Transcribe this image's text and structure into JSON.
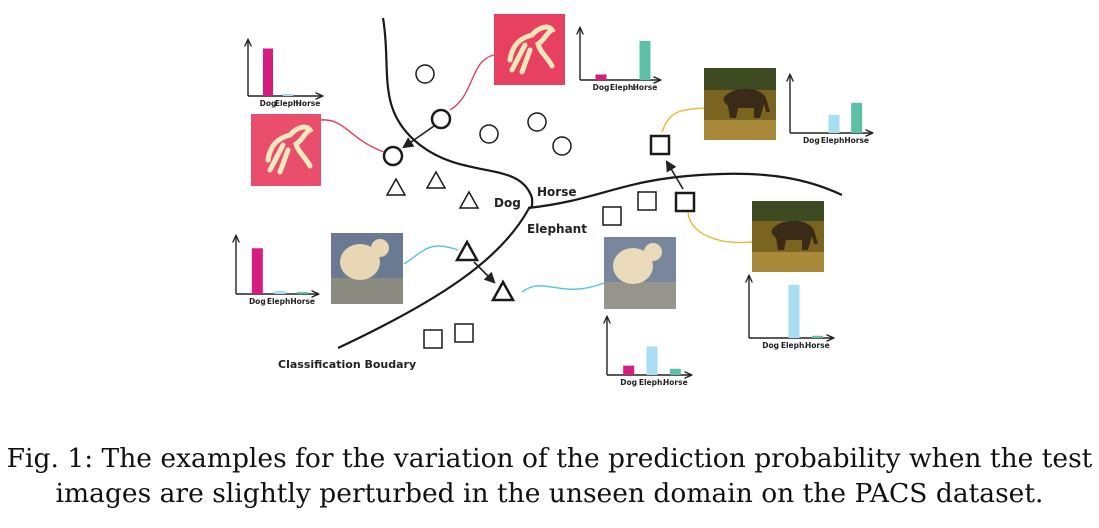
{
  "figure": {
    "region_labels": {
      "dog": "Dog",
      "horse": "Horse",
      "elephant": "Elephant",
      "boundary": "Classification Boudary"
    },
    "colors": {
      "dog": "#d81b7f",
      "eleph": "#a8def0",
      "horse": "#5bc0a6",
      "horse_link": "#e0405a",
      "dog_link": "#4fc3e6",
      "eleph_link": "#e8b830",
      "horse_img_bg": "#e84060",
      "horse_img_fg": "#f3e7b8",
      "elephant_img_bg": "#7a6420",
      "elephant_img_fg": "#3a2a18",
      "dog_img_bg": "#6a7a92",
      "dog_img_fg": "#e8d7b4"
    },
    "bar_charts": [
      {
        "id": "chart-top-left",
        "categories": [
          "Dog",
          "Eleph.",
          "Horse"
        ],
        "values": [
          0.95,
          0.02,
          0.0
        ]
      },
      {
        "id": "chart-top-mid",
        "categories": [
          "Dog",
          "Eleph.",
          "Horse"
        ],
        "values": [
          0.12,
          0.0,
          0.85
        ]
      },
      {
        "id": "chart-top-right",
        "categories": [
          "Dog",
          "Eleph.",
          "Horse"
        ],
        "values": [
          0.0,
          0.35,
          0.58
        ]
      },
      {
        "id": "chart-mid-left",
        "categories": [
          "Dog",
          "Eleph.",
          "Horse"
        ],
        "values": [
          0.88,
          0.06,
          0.04
        ]
      },
      {
        "id": "chart-bottom-mid",
        "categories": [
          "Dog",
          "Eleph.",
          "Horse"
        ],
        "values": [
          0.18,
          0.55,
          0.12
        ]
      },
      {
        "id": "chart-bottom-right",
        "categories": [
          "Dog",
          "Eleph.",
          "Horse"
        ],
        "values": [
          0.0,
          0.95,
          0.04
        ]
      }
    ]
  },
  "caption": {
    "line1": "Fig. 1: The examples for the variation of the prediction probability when the test",
    "line2": "images are slightly perturbed in the unseen domain on the PACS dataset."
  }
}
